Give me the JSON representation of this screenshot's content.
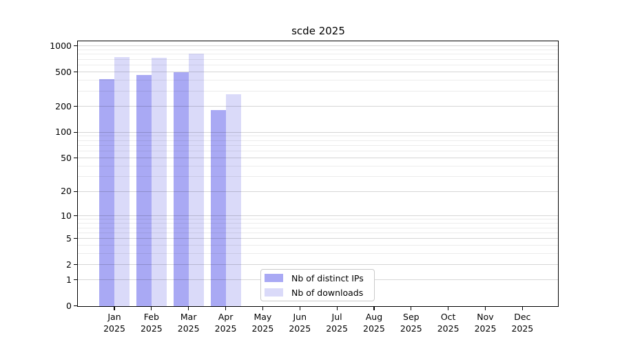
{
  "chart_data": {
    "type": "bar",
    "title": "scde 2025",
    "categories": [
      "Jan",
      "Feb",
      "Mar",
      "Apr",
      "May",
      "Jun",
      "Jul",
      "Aug",
      "Sep",
      "Oct",
      "Nov",
      "Dec"
    ],
    "x_year_label": "2025",
    "series": [
      {
        "name": "Nb of distinct IPs",
        "color": "#a9a9f4",
        "values": [
          415,
          460,
          495,
          180,
          null,
          null,
          null,
          null,
          null,
          null,
          null,
          null
        ]
      },
      {
        "name": "Nb of downloads",
        "color": "#dadaf9",
        "values": [
          740,
          725,
          820,
          278,
          null,
          null,
          null,
          null,
          null,
          null,
          null,
          null
        ]
      }
    ],
    "y_axis": {
      "scale": "log10(1+value)",
      "ticks": [
        0,
        1,
        2,
        5,
        10,
        20,
        50,
        100,
        200,
        500,
        1000
      ],
      "minor_gridlines": [
        3,
        4,
        6,
        7,
        8,
        9,
        30,
        40,
        60,
        70,
        80,
        90,
        300,
        400,
        600,
        700,
        800,
        900
      ],
      "ylim": [
        0,
        1150
      ]
    },
    "grid": "horizontal",
    "legend_position": "bottom-center",
    "frame_color": "#000000",
    "background_color": "#ffffff"
  }
}
